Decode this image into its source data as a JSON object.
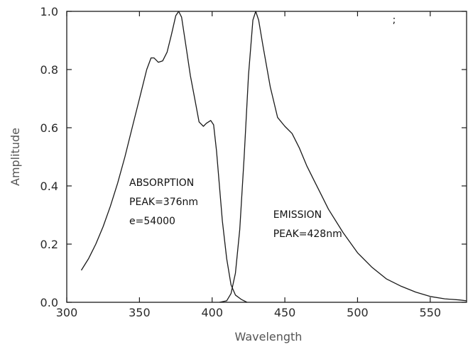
{
  "chart_data": {
    "type": "line",
    "xlabel": "Wavelength",
    "ylabel": "Amplitude",
    "xlim": [
      300,
      575
    ],
    "ylim": [
      0,
      1.0
    ],
    "x_ticks": [
      300,
      350,
      400,
      450,
      500,
      550
    ],
    "y_ticks": [
      0.0,
      0.2,
      0.4,
      0.6,
      0.8,
      1.0
    ],
    "x_tick_labels": [
      "300",
      "350",
      "400",
      "450",
      "500",
      "550"
    ],
    "y_tick_labels": [
      "0.0",
      "0.2",
      "0.4",
      "0.6",
      "0.8",
      "1.0"
    ],
    "grid": false,
    "series": [
      {
        "points": [
          [
            310,
            0.11
          ],
          [
            315,
            0.15
          ],
          [
            320,
            0.2
          ],
          [
            325,
            0.26
          ],
          [
            330,
            0.33
          ],
          [
            335,
            0.41
          ],
          [
            340,
            0.5
          ],
          [
            345,
            0.6
          ],
          [
            350,
            0.7
          ],
          [
            355,
            0.8
          ],
          [
            358,
            0.84
          ],
          [
            360,
            0.84
          ],
          [
            363,
            0.825
          ],
          [
            366,
            0.83
          ],
          [
            369,
            0.86
          ],
          [
            372,
            0.92
          ],
          [
            375,
            0.985
          ],
          [
            377,
            1.0
          ],
          [
            379,
            0.98
          ],
          [
            382,
            0.88
          ],
          [
            385,
            0.78
          ],
          [
            388,
            0.7
          ],
          [
            391,
            0.62
          ],
          [
            394,
            0.605
          ],
          [
            396,
            0.615
          ],
          [
            399,
            0.625
          ],
          [
            401,
            0.61
          ],
          [
            403,
            0.52
          ],
          [
            405,
            0.4
          ],
          [
            407,
            0.28
          ],
          [
            410,
            0.15
          ],
          [
            413,
            0.06
          ],
          [
            416,
            0.025
          ],
          [
            420,
            0.01
          ],
          [
            424,
            0.0
          ]
        ]
      },
      {
        "points": [
          [
            405,
            0.0
          ],
          [
            410,
            0.005
          ],
          [
            413,
            0.03
          ],
          [
            416,
            0.1
          ],
          [
            419,
            0.25
          ],
          [
            422,
            0.5
          ],
          [
            425,
            0.78
          ],
          [
            428,
            0.97
          ],
          [
            430,
            1.0
          ],
          [
            432,
            0.97
          ],
          [
            435,
            0.88
          ],
          [
            440,
            0.74
          ],
          [
            445,
            0.635
          ],
          [
            450,
            0.605
          ],
          [
            455,
            0.58
          ],
          [
            460,
            0.53
          ],
          [
            465,
            0.47
          ],
          [
            470,
            0.42
          ],
          [
            475,
            0.37
          ],
          [
            480,
            0.32
          ],
          [
            490,
            0.24
          ],
          [
            500,
            0.17
          ],
          [
            510,
            0.12
          ],
          [
            520,
            0.08
          ],
          [
            530,
            0.055
          ],
          [
            540,
            0.035
          ],
          [
            550,
            0.02
          ],
          [
            560,
            0.012
          ],
          [
            570,
            0.008
          ],
          [
            575,
            0.005
          ]
        ]
      }
    ],
    "annotations": [
      {
        "lines": [
          "ABSORPTION",
          "PEAK=376nm",
          "e=54000"
        ],
        "x": 343,
        "y": 0.4
      },
      {
        "lines": [
          "EMISSION",
          "PEAK=428nm"
        ],
        "x": 442,
        "y": 0.29
      }
    ],
    "stray_mark": {
      "text": ";",
      "x": 524,
      "y": 0.96
    }
  }
}
